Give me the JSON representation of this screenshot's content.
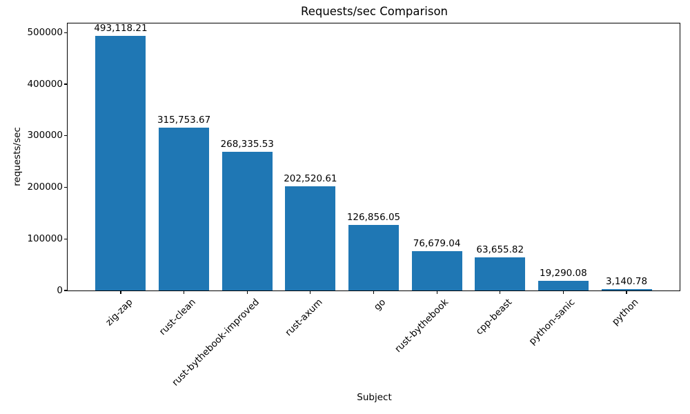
{
  "chart_data": {
    "type": "bar",
    "title": "Requests/sec Comparison",
    "xlabel": "Subject",
    "ylabel": "requests/sec",
    "categories": [
      "zig-zap",
      "rust-clean",
      "rust-bythebook-improved",
      "rust-axum",
      "go",
      "rust-bythebook",
      "cpp-beast",
      "python-sanic",
      "python"
    ],
    "values": [
      493118.21,
      315753.67,
      268335.53,
      202520.61,
      126856.05,
      76679.04,
      63655.82,
      19290.08,
      3140.78
    ],
    "value_labels": [
      "493,118.21",
      "315,753.67",
      "268,335.53",
      "202,520.61",
      "126,856.05",
      "76,679.04",
      "63,655.82",
      "19,290.08",
      "3,140.78"
    ],
    "yticks": [
      0,
      100000,
      200000,
      300000,
      400000,
      500000
    ],
    "ytick_labels": [
      "0",
      "100000",
      "200000",
      "300000",
      "400000",
      "500000"
    ],
    "ylim": [
      0,
      517774
    ],
    "bar_color": "#1f77b4",
    "grid": false,
    "legend_position": "none",
    "xtick_rotation_deg": 45
  }
}
